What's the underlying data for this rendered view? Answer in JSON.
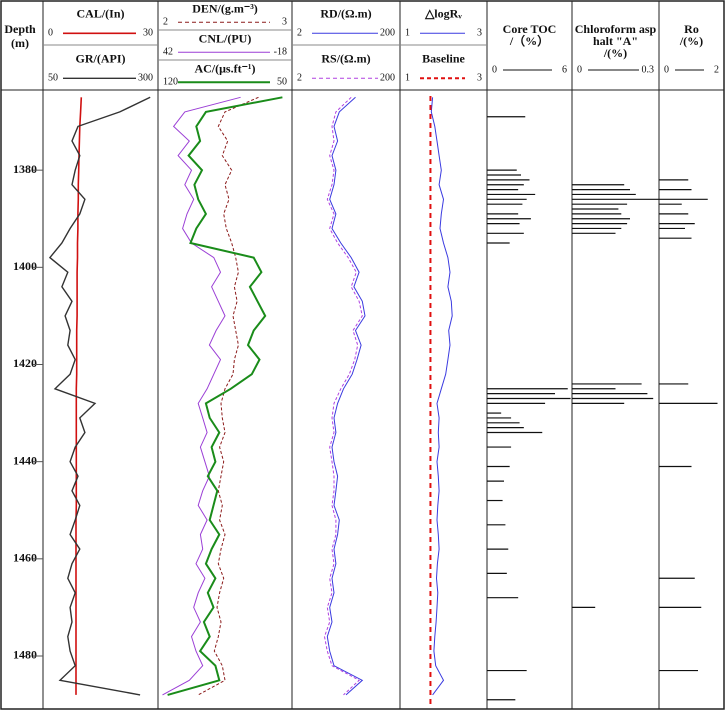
{
  "chart_data": {
    "type": "well_log",
    "depth_title": [
      "Depth",
      "(m)"
    ],
    "ylim": [
      1363.5,
      1490.5
    ],
    "yticks": [
      1380,
      1400,
      1420,
      1440,
      1460,
      1480
    ],
    "depth": [
      1365,
      1368,
      1371,
      1374,
      1377,
      1380,
      1383,
      1386,
      1389,
      1392,
      1395,
      1398,
      1401,
      1404,
      1407,
      1410,
      1413,
      1416,
      1419,
      1422,
      1425,
      1428,
      1431,
      1434,
      1437,
      1440,
      1443,
      1446,
      1449,
      1452,
      1455,
      1458,
      1461,
      1464,
      1467,
      1470,
      1473,
      1476,
      1479,
      1482,
      1485,
      1488
    ],
    "tracks": [
      {
        "type": "curves",
        "curves": [
          {
            "name": "CAL/(In)",
            "color": "#d01010",
            "width": 1.6,
            "xlim": [
              0,
              30
            ],
            "values": [
              10,
              9.8,
              9.6,
              9.5,
              9.4,
              9.3,
              9.2,
              9.2,
              9.1,
              9.1,
              9.0,
              9.0,
              8.9,
              8.9,
              8.9,
              8.9,
              8.8,
              8.8,
              8.8,
              8.8,
              8.7,
              8.7,
              8.7,
              8.7,
              8.7,
              8.7,
              8.7,
              8.7,
              8.7,
              8.6,
              8.6,
              8.6,
              8.6,
              8.6,
              8.6,
              8.6,
              8.6,
              8.6,
              8.6,
              8.6,
              8.6,
              8.6
            ]
          },
          {
            "name": "GR/(API)",
            "color": "#333333",
            "width": 1.4,
            "xlim": [
              50,
              300
            ],
            "values": [
              283,
              217,
              126,
              113,
              130,
              120,
              113,
              141,
              130,
              109,
              91,
              65,
              104,
              91,
              113,
              98,
              109,
              104,
              120,
              109,
              76,
              163,
              130,
              141,
              120,
              109,
              126,
              113,
              130,
              120,
              109,
              130,
              113,
              104,
              120,
              109,
              113,
              104,
              109,
              120,
              87,
              261
            ]
          }
        ]
      },
      {
        "type": "curves",
        "curves": [
          {
            "name": "DEN/(g.m⁻³)",
            "color": "#8b1a1a",
            "width": 1,
            "dash": true,
            "xlim": [
              2,
              3
            ],
            "values": [
              2.75,
              2.5,
              2.45,
              2.52,
              2.48,
              2.55,
              2.5,
              2.53,
              2.49,
              2.51,
              2.55,
              2.58,
              2.6,
              2.57,
              2.59,
              2.56,
              2.58,
              2.6,
              2.57,
              2.56,
              2.5,
              2.47,
              2.48,
              2.5,
              2.46,
              2.49,
              2.47,
              2.45,
              2.48,
              2.46,
              2.5,
              2.47,
              2.45,
              2.49,
              2.46,
              2.44,
              2.47,
              2.45,
              2.42,
              2.48,
              2.5,
              2.3
            ]
          },
          {
            "name": "CNL/(PU)",
            "color": "#9b3fd6",
            "width": 1,
            "xlim": [
              42,
              -18
            ],
            "values": [
              5,
              30,
              35,
              28,
              33,
              27,
              30,
              26,
              29,
              31,
              27,
              17,
              14,
              18,
              15,
              12,
              16,
              19,
              14,
              17,
              20,
              24,
              22,
              20,
              23,
              21,
              19,
              22,
              24,
              20,
              23,
              22,
              25,
              21,
              24,
              26,
              23,
              27,
              25,
              22,
              28,
              40
            ]
          },
          {
            "name": "AC/(μs.ft⁻¹)",
            "color": "#1a8c1a",
            "width": 2,
            "xlim": [
              120,
              50
            ],
            "values": [
              55,
              95,
              100,
              98,
              104,
              97,
              101,
              99,
              95,
              100,
              103,
              70,
              66,
              72,
              68,
              64,
              70,
              73,
              67,
              71,
              82,
              95,
              93,
              88,
              92,
              90,
              94,
              89,
              91,
              93,
              88,
              92,
              95,
              90,
              94,
              91,
              96,
              93,
              98,
              90,
              88,
              115
            ]
          }
        ]
      },
      {
        "type": "curves",
        "curves": [
          {
            "name": "RD/(Ω.m)",
            "color": "#3a3ae0",
            "width": 1,
            "log": true,
            "xlim": [
              2,
              200
            ],
            "values": [
              30,
              15,
              12,
              14,
              11,
              13,
              12,
              10,
              13,
              11,
              16,
              25,
              35,
              28,
              40,
              45,
              30,
              38,
              32,
              26,
              18,
              14,
              12,
              13,
              11,
              12,
              14,
              13,
              12,
              15,
              14,
              12,
              13,
              11,
              12,
              10,
              11,
              9,
              10,
              12,
              40,
              20
            ]
          },
          {
            "name": "RS/(Ω.m)",
            "color": "#b040e0",
            "width": 1,
            "dash": true,
            "log": true,
            "xlim": [
              2,
              200
            ],
            "values": [
              25,
              13,
              11,
              12,
              10,
              12,
              11,
              9,
              12,
              10,
              14,
              22,
              31,
              25,
              35,
              40,
              27,
              33,
              29,
              23,
              16,
              12,
              11,
              12,
              10,
              11,
              12,
              12,
              11,
              13,
              13,
              11,
              12,
              10,
              11,
              9,
              10,
              8,
              9,
              11,
              35,
              18
            ]
          }
        ]
      },
      {
        "type": "curves",
        "curves": [
          {
            "name": "△logRᵥ",
            "color": "#3a3ae0",
            "width": 1,
            "xlim": [
              1,
              3
            ],
            "values": [
              1.75,
              1.72,
              1.8,
              1.85,
              1.9,
              1.95,
              1.9,
              2.0,
              1.95,
              1.92,
              2.0,
              2.1,
              2.15,
              2.1,
              2.18,
              2.2,
              2.12,
              2.15,
              2.1,
              2.05,
              1.95,
              1.85,
              1.9,
              1.88,
              1.9,
              1.85,
              1.88,
              1.9,
              1.87,
              1.85,
              1.88,
              1.9,
              1.86,
              1.84,
              1.87,
              1.85,
              1.83,
              1.8,
              1.78,
              1.82,
              2.0,
              1.75
            ]
          },
          {
            "name": "Baseline",
            "color": "#e01010",
            "width": 2,
            "dash": true,
            "xlim": [
              1,
              3
            ],
            "value": 1.7
          }
        ]
      },
      {
        "type": "bars",
        "title": [
          "Core TOC",
          "/（%）"
        ],
        "xlim": [
          0,
          6
        ],
        "depths": [
          1369,
          1380,
          1381,
          1382,
          1383,
          1384,
          1385,
          1386,
          1387,
          1389,
          1390,
          1391,
          1393,
          1395,
          1425,
          1426,
          1427,
          1428,
          1430,
          1431,
          1432,
          1433,
          1434,
          1437,
          1441,
          1444,
          1448,
          1453,
          1458,
          1463,
          1468,
          1483,
          1489
        ],
        "values": [
          2.7,
          2.1,
          2.4,
          3.0,
          2.6,
          2.2,
          3.4,
          2.8,
          2.5,
          2.2,
          3.1,
          2.3,
          2.6,
          1.6,
          5.7,
          4.8,
          5.9,
          4.1,
          1.0,
          1.7,
          2.3,
          2.6,
          3.9,
          1.7,
          1.6,
          1.2,
          1.1,
          1.3,
          1.5,
          1.4,
          2.2,
          2.8,
          2.0
        ]
      },
      {
        "type": "bars",
        "title": [
          "Chloroform asp",
          "halt \"A\"",
          "/(%)"
        ],
        "xlim": [
          0,
          0.3
        ],
        "depths": [
          1383,
          1384,
          1385,
          1386,
          1387,
          1388,
          1389,
          1390,
          1391,
          1392,
          1393,
          1424,
          1425,
          1426,
          1427,
          1428,
          1470
        ],
        "values": [
          0.18,
          0.2,
          0.22,
          0.3,
          0.19,
          0.16,
          0.17,
          0.2,
          0.19,
          0.17,
          0.15,
          0.24,
          0.15,
          0.26,
          0.28,
          0.18,
          0.08
        ]
      },
      {
        "type": "bars",
        "title": [
          "Ro",
          "/(%)"
        ],
        "xlim": [
          0,
          2
        ],
        "depths": [
          1382,
          1384,
          1386,
          1387,
          1389,
          1391,
          1392,
          1394,
          1424,
          1428,
          1441,
          1464,
          1470,
          1483
        ],
        "values": [
          0.9,
          1.0,
          1.5,
          0.7,
          0.9,
          1.1,
          0.8,
          1.0,
          0.9,
          1.8,
          1.0,
          1.1,
          1.3,
          1.2
        ]
      }
    ]
  }
}
